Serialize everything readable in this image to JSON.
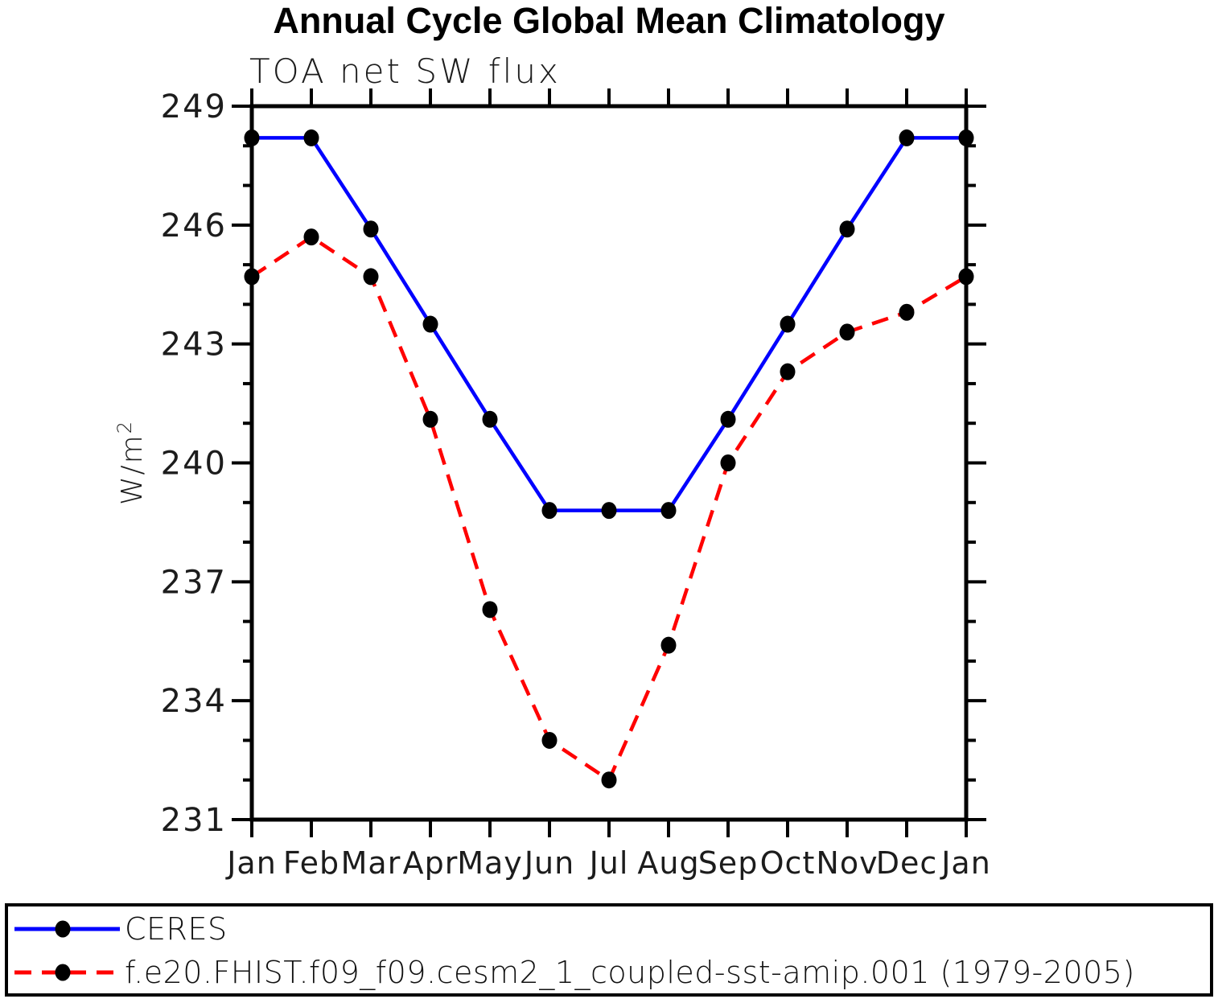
{
  "page": {
    "background": "#ffffff"
  },
  "chart_data": {
    "type": "line",
    "title": "Annual Cycle Global Mean Climatology",
    "subtitle": "TOA net SW flux",
    "ylabel_base": "W/m",
    "ylabel_exp": "2",
    "x_categories": [
      "Jan",
      "Feb",
      "Mar",
      "Apr",
      "May",
      "Jun",
      "Jul",
      "Aug",
      "Sep",
      "Oct",
      "Nov",
      "Dec",
      "Jan"
    ],
    "ylim": [
      231,
      249
    ],
    "y_major_step": 3,
    "y_minor_step": 1,
    "y_tick_labels": [
      "231",
      "234",
      "237",
      "240",
      "243",
      "246",
      "249"
    ],
    "grid": false,
    "axis_color": "#000000",
    "marker_color": "#000000",
    "legend_position": "bottom-outside",
    "series": [
      {
        "name": "CERES",
        "color": "#0000ff",
        "line_style": "solid",
        "marker": "filled-black-dot",
        "values": [
          248.2,
          248.2,
          245.9,
          243.5,
          241.1,
          238.8,
          238.8,
          238.8,
          241.1,
          243.5,
          245.9,
          248.2,
          248.2
        ]
      },
      {
        "name": "f.e20.FHIST.f09_f09.cesm2_1_coupled-sst-amip.001 (1979-2005)",
        "color": "#ff0000",
        "line_style": "dashed",
        "marker": "filled-black-dot",
        "values": [
          244.7,
          245.7,
          244.7,
          241.1,
          236.3,
          233.0,
          232.0,
          235.4,
          240.0,
          242.3,
          243.3,
          243.8,
          244.7
        ]
      }
    ]
  }
}
